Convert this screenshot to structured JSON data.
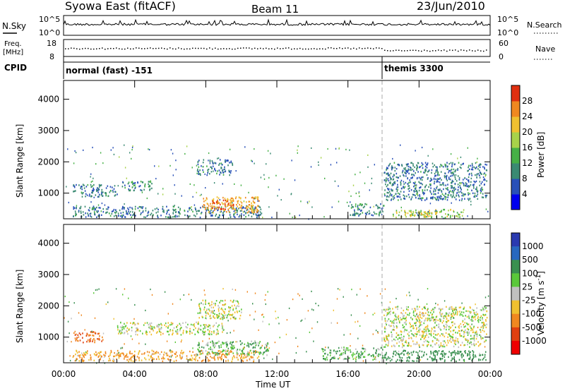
{
  "header": {
    "station": "Syowa East (fitACF)",
    "beam": "Beam 11",
    "date": "23/Jun/2010"
  },
  "nsky": {
    "label": "N.Sky",
    "left_ticks": [
      "10^5",
      "10^0"
    ],
    "right_label": "N.Search",
    "right_ticks": [
      "10^5",
      "10^0"
    ]
  },
  "freq": {
    "label_line1": "Freq.",
    "label_line2": "[MHz]",
    "left_ticks": [
      "18",
      "8"
    ],
    "right_label": "Nave",
    "right_ticks": [
      "60",
      "0"
    ]
  },
  "cpid": {
    "label": "CPID",
    "segments": [
      "normal (fast) -151",
      "themis 3300"
    ]
  },
  "time_axis": {
    "label": "Time UT",
    "ticks": [
      "00:00",
      "04:00",
      "08:00",
      "12:00",
      "16:00",
      "20:00",
      "00:00"
    ]
  },
  "chart_data": [
    {
      "type": "heatmap",
      "panel": "power",
      "ylabel": "Slant Range [km]",
      "yticks": [
        "1000",
        "2000",
        "3000",
        "4000"
      ],
      "ylim": [
        180,
        4600
      ],
      "xlim_hours": [
        0,
        24
      ],
      "colorbar": {
        "label": "Power [dB]",
        "ticks": [
          "4",
          "8",
          "12",
          "16",
          "20",
          "24",
          "28"
        ],
        "range": [
          0,
          30
        ],
        "colors": [
          "#0000ee",
          "#2850b8",
          "#3a8a72",
          "#46b046",
          "#a8d24a",
          "#f0c030",
          "#f08820",
          "#e03010"
        ]
      },
      "echo_regions": [
        {
          "t": [
            0.5,
            3.0
          ],
          "r": [
            900,
            1300
          ],
          "level": 8
        },
        {
          "t": [
            3.2,
            5.0
          ],
          "r": [
            1100,
            1400
          ],
          "level": 10
        },
        {
          "t": [
            7.5,
            9.5
          ],
          "r": [
            1600,
            2100
          ],
          "level": 8
        },
        {
          "t": [
            0.5,
            11.2
          ],
          "r": [
            250,
            600
          ],
          "level": 8
        },
        {
          "t": [
            7.8,
            11.0
          ],
          "r": [
            400,
            900
          ],
          "level": 22
        },
        {
          "t": [
            8.3,
            9.6
          ],
          "r": [
            500,
            800
          ],
          "level": 26
        },
        {
          "t": [
            16.0,
            18.0
          ],
          "r": [
            300,
            700
          ],
          "level": 10
        },
        {
          "t": [
            18.0,
            23.8
          ],
          "r": [
            800,
            2000
          ],
          "level": 8
        },
        {
          "t": [
            18.5,
            22.5
          ],
          "r": [
            250,
            500
          ],
          "level": 16
        },
        {
          "t": [
            19.0,
            21.0
          ],
          "r": [
            280,
            420
          ],
          "level": 22
        }
      ]
    },
    {
      "type": "heatmap",
      "panel": "velocity",
      "ylabel": "Slant Range [km]",
      "yticks": [
        "1000",
        "2000",
        "3000",
        "4000"
      ],
      "ylim": [
        180,
        4600
      ],
      "xlim_hours": [
        0,
        24
      ],
      "colorbar": {
        "label": "Velocity [m s^-1]",
        "ticks": [
          "1000",
          "500",
          "100",
          "25",
          "-25",
          "-100",
          "-500",
          "-1000"
        ],
        "range": [
          -1000,
          1000
        ],
        "colors": [
          "#2a3ab0",
          "#2868c0",
          "#3a9050",
          "#5ac83a",
          "#c0c0c0",
          "#f0c030",
          "#f08820",
          "#e04010",
          "#ee0000"
        ]
      },
      "echo_regions": [
        {
          "t": [
            0.5,
            2.2
          ],
          "r": [
            850,
            1200
          ],
          "level": -500
        },
        {
          "t": [
            0.5,
            11.0
          ],
          "r": [
            250,
            600
          ],
          "level": -100
        },
        {
          "t": [
            3.0,
            9.0
          ],
          "r": [
            1100,
            1500
          ],
          "level": 0
        },
        {
          "t": [
            7.5,
            11.5
          ],
          "r": [
            450,
            900
          ],
          "level": 100
        },
        {
          "t": [
            7.5,
            10.0
          ],
          "r": [
            1600,
            2200
          ],
          "level": 0
        },
        {
          "t": [
            14.5,
            18.0
          ],
          "r": [
            300,
            700
          ],
          "level": 100
        },
        {
          "t": [
            18.0,
            23.8
          ],
          "r": [
            250,
            600
          ],
          "level": 200
        },
        {
          "t": [
            18.0,
            23.8
          ],
          "r": [
            700,
            2000
          ],
          "level": 0
        }
      ]
    }
  ]
}
